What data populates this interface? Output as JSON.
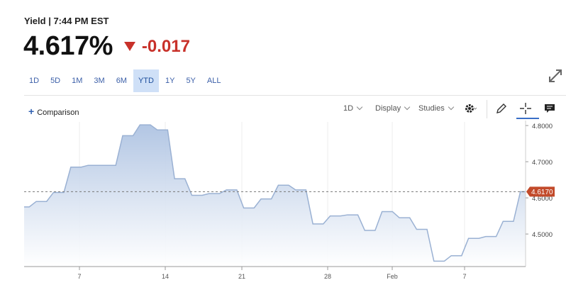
{
  "header": {
    "label": "Yield | 7:44 PM EST"
  },
  "quote": {
    "value": "4.617%",
    "change": "-0.017",
    "direction": "down",
    "down_color": "#c8312a"
  },
  "ranges": [
    "1D",
    "5D",
    "1M",
    "3M",
    "6M",
    "YTD",
    "1Y",
    "5Y",
    "ALL"
  ],
  "active_range": "YTD",
  "toolbar": {
    "comparison_label": "Comparison",
    "interval_label": "1D",
    "display_label": "Display",
    "studies_label": "Studies"
  },
  "icons": [
    "expand-icon",
    "plus-icon",
    "gear-icon",
    "pencil-icon",
    "crosshair-icon",
    "comment-icon"
  ],
  "chart_data": {
    "type": "area",
    "title": "",
    "xlabel": "",
    "ylabel": "",
    "x_ticks": [
      "7",
      "14",
      "21",
      "28",
      "Feb",
      "7"
    ],
    "y_ticks": [
      "4.8000",
      "4.7000",
      "4.6000",
      "4.5000"
    ],
    "ylim": [
      4.41,
      4.81
    ],
    "grid": {
      "vertical": true,
      "horizontal": false
    },
    "reference_line": {
      "value": 4.617,
      "label": "4.6170",
      "style": "dashed"
    },
    "colors": {
      "line": "#9ab1d3",
      "fill_top": "#aec3e2",
      "fill_bottom": "#ffffff",
      "marker": "#c24a2a"
    },
    "series": [
      {
        "x": [
          "Jan 2",
          "Jan 3",
          "Jan 4",
          "Jan 5",
          "Jan 8",
          "Jan 9",
          "Jan 10",
          "Jan 11",
          "Jan 12",
          "Jan 16",
          "Jan 17",
          "Jan 18",
          "Jan 19",
          "Jan 22",
          "Jan 23",
          "Jan 24",
          "Jan 25",
          "Jan 26",
          "Jan 29",
          "Jan 30",
          "Jan 31",
          "Feb 1",
          "Feb 2",
          "Feb 5",
          "Feb 6",
          "Feb 7",
          "Feb 8",
          "Feb 9",
          "Feb 12",
          "Feb 13"
        ],
        "values": [
          4.575,
          4.59,
          4.615,
          4.685,
          4.69,
          4.69,
          4.772,
          4.802,
          4.788,
          4.653,
          4.607,
          4.612,
          4.622,
          4.572,
          4.597,
          4.635,
          4.622,
          4.528,
          4.55,
          4.553,
          4.51,
          4.562,
          4.545,
          4.513,
          4.425,
          4.44,
          4.488,
          4.493,
          4.535,
          4.617
        ]
      }
    ]
  }
}
